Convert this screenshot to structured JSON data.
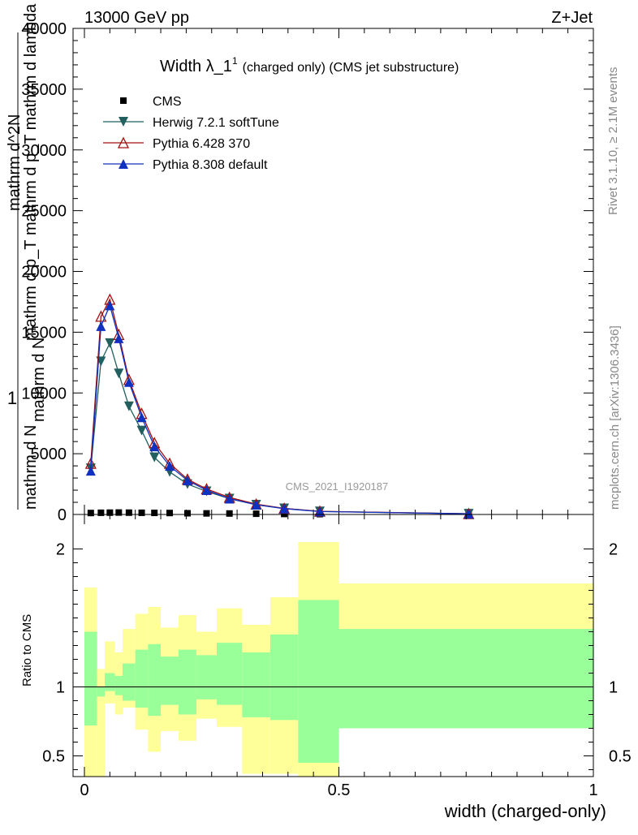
{
  "header": {
    "left": "13000 GeV pp",
    "right": "Z+Jet"
  },
  "side_labels": {
    "rivet": "Rivet 3.1.10, ≥ 2.1M events",
    "mcplots": "mcplots.cern.ch [arXiv:1306.3436]"
  },
  "watermark": "CMS_2021_I1920187",
  "top_title": {
    "main": "Width λ_1",
    "sup": "1",
    "rest": "(charged only) (CMS jet substructure)"
  },
  "ylabel_parts": [
    "1",
    "mathrm d N",
    "mathrm d p_T",
    "mathrm d N",
    "mathrm d p_T mathrm d lambda",
    "mathrm d^2N"
  ],
  "xlabel": "width (charged-only)",
  "ratio_ylabel": "Ratio to CMS",
  "chart_data": [
    {
      "type": "line",
      "panel": "main",
      "xlim": [
        -0.02,
        1.0
      ],
      "ylim": [
        0,
        40000
      ],
      "yticks": [
        0,
        5000,
        10000,
        15000,
        20000,
        25000,
        30000,
        35000,
        40000
      ],
      "ytick_labels": [
        "0",
        "5000",
        "10000",
        "15000",
        "20000",
        "25000",
        "30000",
        "35000",
        "40000"
      ],
      "x": [
        0.0125,
        0.0325,
        0.05,
        0.0675,
        0.0875,
        0.1125,
        0.1375,
        0.1675,
        0.2025,
        0.24,
        0.285,
        0.3375,
        0.3925,
        0.4625,
        0.755
      ],
      "series": [
        {
          "name": "CMS",
          "marker": "square",
          "color": "#000000",
          "values": [
            120,
            140,
            150,
            160,
            150,
            140,
            130,
            120,
            100,
            90,
            80,
            60,
            40,
            30,
            10
          ]
        },
        {
          "name": "Herwig 7.2.1 softTune",
          "marker": "triangle-down",
          "color": "#225f5f",
          "values": [
            3800,
            12600,
            14100,
            11600,
            8900,
            6900,
            4700,
            3500,
            2500,
            1900,
            1300,
            800,
            500,
            250,
            60
          ]
        },
        {
          "name": "Pythia 6.428 370",
          "marker": "triangle-up-open",
          "color": "#a01010",
          "values": [
            4200,
            16300,
            17700,
            14800,
            11100,
            8300,
            5900,
            4200,
            2900,
            2100,
            1400,
            850,
            500,
            260,
            60
          ]
        },
        {
          "name": "Pythia 8.308 default",
          "marker": "triangle-up",
          "color": "#1030c0",
          "values": [
            3600,
            15500,
            17200,
            14500,
            10900,
            8000,
            5600,
            4000,
            2800,
            2000,
            1300,
            800,
            480,
            240,
            55
          ]
        }
      ],
      "legend": "top-left"
    },
    {
      "type": "area",
      "panel": "ratio",
      "xlim": [
        -0.02,
        1.0
      ],
      "ylim": [
        0.35,
        2.25
      ],
      "yticks": [
        0.5,
        1,
        2
      ],
      "ytick_labels": [
        "0.5",
        "1",
        "2"
      ],
      "xticks": [
        0,
        0.5,
        1
      ],
      "xtick_labels": [
        "0",
        "0.5",
        "1"
      ],
      "bin_edges": [
        0,
        0.025,
        0.04,
        0.06,
        0.075,
        0.1,
        0.125,
        0.15,
        0.185,
        0.22,
        0.26,
        0.31,
        0.365,
        0.42,
        0.5,
        1.0
      ],
      "band_outer_upper": [
        1.72,
        1.13,
        1.33,
        1.25,
        1.42,
        1.53,
        1.58,
        1.43,
        1.52,
        1.4,
        1.57,
        1.45,
        1.65,
        2.05,
        1.75
      ],
      "band_outer_lower": [
        0.0,
        0.0,
        0.88,
        0.8,
        0.85,
        0.69,
        0.53,
        0.68,
        0.61,
        0.77,
        0.71,
        0.37,
        0.37,
        0.35,
        0.71
      ],
      "band_inner_upper": [
        1.4,
        1.0,
        1.1,
        1.08,
        1.17,
        1.27,
        1.31,
        1.22,
        1.27,
        1.23,
        1.32,
        1.25,
        1.38,
        1.63,
        1.42
      ],
      "band_inner_lower": [
        0.72,
        0.93,
        0.97,
        0.94,
        0.9,
        0.85,
        0.79,
        0.87,
        0.8,
        0.91,
        0.87,
        0.78,
        0.76,
        0.45,
        0.7
      ],
      "reference": 1
    }
  ],
  "colors": {
    "band_outer": "#ffff99",
    "band_inner": "#99ff99"
  }
}
